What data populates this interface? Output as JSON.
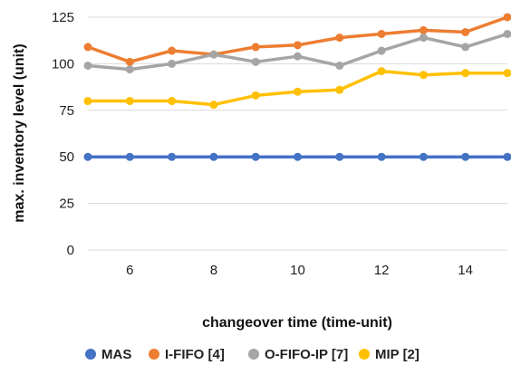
{
  "chart_data": {
    "type": "line",
    "x": [
      5,
      6,
      7,
      8,
      9,
      10,
      11,
      12,
      13,
      14,
      15
    ],
    "xlabel": "changeover time (time-unit)",
    "ylabel": "max. inventory level (unit)",
    "xlim": [
      5,
      15
    ],
    "ylim": [
      0,
      125
    ],
    "x_ticks": [
      "6",
      "8",
      "10",
      "12",
      "14"
    ],
    "x_tick_values": [
      6,
      8,
      10,
      12,
      14
    ],
    "y_ticks": [
      "0",
      "25",
      "50",
      "75",
      "100",
      "125"
    ],
    "y_tick_values": [
      0,
      25,
      50,
      75,
      100,
      125
    ],
    "grid": "horizontal",
    "legend_position": "bottom",
    "series": [
      {
        "name": "MAS",
        "color": "#4472c4",
        "values": [
          50,
          50,
          50,
          50,
          50,
          50,
          50,
          50,
          50,
          50,
          50
        ]
      },
      {
        "name": "I-FIFO [4]",
        "color": "#ed7d31",
        "values": [
          109,
          101,
          107,
          105,
          109,
          110,
          114,
          116,
          118,
          117,
          125
        ]
      },
      {
        "name": "O-FIFO-IP [7]",
        "color": "#a5a5a5",
        "values": [
          99,
          97,
          100,
          105,
          101,
          104,
          99,
          107,
          114,
          109,
          116
        ]
      },
      {
        "name": "MIP [2]",
        "color": "#ffc000",
        "values": [
          80,
          80,
          80,
          78,
          83,
          85,
          86,
          96,
          94,
          95,
          95
        ]
      }
    ]
  }
}
